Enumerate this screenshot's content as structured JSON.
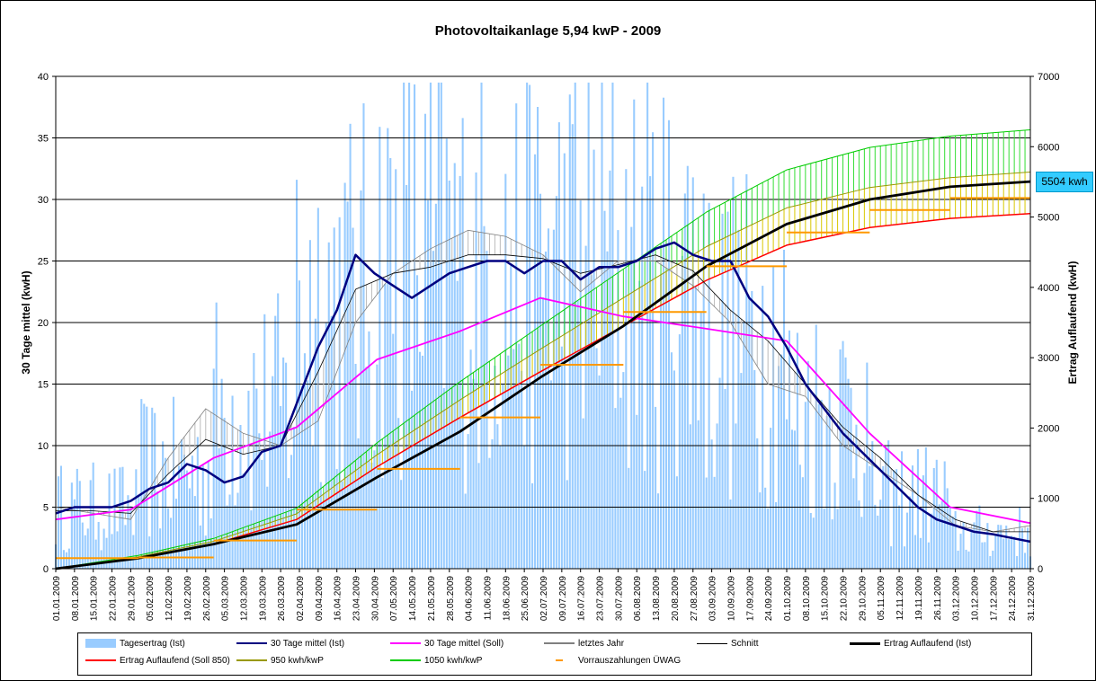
{
  "chart_data": {
    "type": "bar+line",
    "title": "Photovoltaikanlage 5,94 kwP  - 2009",
    "ylabel_left": "30 Tage mittel (kwH)",
    "ylabel_right": "Ertrag Auflaufend (kwH)",
    "ylim_left": [
      0,
      40
    ],
    "ylim_right": [
      0,
      7000
    ],
    "yticks_left": [
      "0",
      "5",
      "10",
      "15",
      "20",
      "25",
      "30",
      "35",
      "40"
    ],
    "yticks_right": [
      "0",
      "1000",
      "2000",
      "3000",
      "4000",
      "5000",
      "6000",
      "7000"
    ],
    "xlim_days": [
      0,
      364
    ],
    "grid": "horizontal",
    "legend_position": "bottom",
    "x_tick_labels": [
      "01.01.2009",
      "08.01.2009",
      "15.01.2009",
      "22.01.2009",
      "29.01.2009",
      "05.02.2009",
      "12.02.2009",
      "19.02.2009",
      "26.02.2009",
      "05.03.2009",
      "12.03.2009",
      "19.03.2009",
      "26.03.2009",
      "02.04.2009",
      "09.04.2009",
      "16.04.2009",
      "23.04.2009",
      "30.04.2009",
      "07.05.2009",
      "14.05.2009",
      "21.05.2009",
      "28.05.2009",
      "04.06.2009",
      "11.06.2009",
      "18.06.2009",
      "25.06.2009",
      "02.07.2009",
      "09.07.2009",
      "16.07.2009",
      "23.07.2009",
      "30.07.2009",
      "06.08.2009",
      "13.08.2009",
      "20.08.2009",
      "27.08.2009",
      "03.09.2009",
      "10.09.2009",
      "17.09.2009",
      "24.09.2009",
      "01.10.2009",
      "08.10.2009",
      "15.10.2009",
      "22.10.2009",
      "29.10.2009",
      "05.11.2009",
      "12.11.2009",
      "19.11.2009",
      "26.11.2009",
      "03.12.2009",
      "10.12.2009",
      "17.12.2009",
      "24.12.2009",
      "31.12.2009"
    ],
    "daily_monthly_avg_kwh": [
      5,
      8,
      13,
      22,
      25,
      24,
      25,
      24,
      19,
      13,
      6,
      3
    ],
    "series": [
      {
        "name": "30 Tage mittel (Ist)",
        "axis": "left",
        "color": "#000080",
        "x": [
          0,
          7,
          14,
          21,
          28,
          35,
          42,
          49,
          56,
          63,
          70,
          77,
          84,
          91,
          98,
          105,
          112,
          119,
          126,
          133,
          140,
          147,
          154,
          161,
          168,
          175,
          182,
          189,
          196,
          203,
          210,
          217,
          224,
          231,
          238,
          245,
          252,
          259,
          266,
          273,
          280,
          287,
          294,
          301,
          308,
          315,
          322,
          329,
          336,
          343,
          350,
          357,
          364
        ],
        "y": [
          4.5,
          5,
          5,
          5,
          5.5,
          6.5,
          7,
          8.5,
          8,
          7,
          7.5,
          9.5,
          10,
          14,
          18,
          21,
          25.5,
          24,
          23,
          22,
          23,
          24,
          24.5,
          25,
          25,
          24,
          25,
          25,
          23.5,
          24.5,
          24.5,
          25,
          26,
          26.5,
          25.5,
          25,
          25,
          22,
          20.5,
          18,
          15,
          13,
          11,
          9.5,
          8,
          6.5,
          5,
          4,
          3.5,
          3,
          2.8,
          2.5,
          2.2
        ]
      },
      {
        "name": "30 Tage mittel (Soll)",
        "axis": "left",
        "color": "#ff00ff",
        "x": [
          0,
          28,
          59,
          90,
          120,
          151,
          181,
          212,
          243,
          273,
          304,
          334,
          364
        ],
        "y": [
          4,
          4.8,
          9,
          11.5,
          17,
          19.3,
          22,
          20.5,
          19.5,
          18.5,
          11,
          5,
          3.7
        ]
      },
      {
        "name": "letztes Jahr",
        "axis": "left",
        "color": "#808080",
        "x": [
          0,
          14,
          28,
          42,
          56,
          70,
          84,
          98,
          112,
          126,
          140,
          154,
          168,
          182,
          196,
          210,
          224,
          238,
          252,
          266,
          280,
          294,
          308,
          322,
          336,
          350,
          364
        ],
        "y": [
          5,
          4.5,
          4,
          9,
          13,
          11,
          10,
          12,
          20,
          24,
          26,
          27.5,
          27,
          25.5,
          22.5,
          25,
          25,
          23,
          20,
          15,
          14,
          10,
          8,
          6,
          3.5,
          3,
          3.5
        ]
      },
      {
        "name": "Schnitt",
        "axis": "left",
        "color": "#000000",
        "x": [
          0,
          14,
          28,
          42,
          56,
          70,
          84,
          98,
          112,
          126,
          140,
          154,
          168,
          182,
          196,
          210,
          224,
          238,
          252,
          266,
          280,
          294,
          308,
          322,
          336,
          350,
          364
        ],
        "y": [
          4.7,
          4.7,
          4.5,
          7.7,
          10.5,
          9.3,
          10,
          16,
          22.7,
          24,
          24.5,
          25.5,
          25.5,
          25.2,
          24,
          24.7,
          25.5,
          24.2,
          21,
          18.5,
          15,
          11.5,
          9,
          6,
          4,
          3,
          3
        ]
      },
      {
        "name": "Ertrag Auflaufend (Ist)",
        "axis": "right",
        "color": "#000000",
        "x": [
          0,
          31,
          59,
          90,
          120,
          151,
          181,
          212,
          243,
          273,
          304,
          334,
          364
        ],
        "y": [
          0,
          150,
          350,
          630,
          1300,
          1950,
          2720,
          3450,
          4300,
          4900,
          5250,
          5430,
          5504
        ]
      },
      {
        "name": "Ertrag Auflaufend (Soll 850)",
        "axis": "right",
        "color": "#ff0000",
        "x": [
          0,
          31,
          59,
          90,
          120,
          151,
          181,
          212,
          243,
          273,
          304,
          334,
          364
        ],
        "y": [
          0,
          150,
          350,
          700,
          1450,
          2150,
          2800,
          3450,
          4100,
          4600,
          4850,
          4980,
          5050
        ]
      },
      {
        "name": "950 kwh/kwP",
        "axis": "right",
        "color": "#999900",
        "x": [
          0,
          31,
          59,
          90,
          120,
          151,
          181,
          212,
          243,
          273,
          304,
          334,
          364
        ],
        "y": [
          0,
          170,
          390,
          780,
          1620,
          2400,
          3120,
          3850,
          4580,
          5130,
          5420,
          5560,
          5640
        ]
      },
      {
        "name": "1050 kwh/kwP",
        "axis": "right",
        "color": "#00cc00",
        "x": [
          0,
          31,
          59,
          90,
          120,
          151,
          181,
          212,
          243,
          273,
          304,
          334,
          364
        ],
        "y": [
          0,
          190,
          430,
          860,
          1790,
          2660,
          3450,
          4260,
          5070,
          5670,
          5990,
          6150,
          6240
        ]
      }
    ],
    "vorrauszahlungen": [
      {
        "x0": 0,
        "x1": 31,
        "y": 150
      },
      {
        "x0": 31,
        "x1": 59,
        "y": 160
      },
      {
        "x0": 59,
        "x1": 90,
        "y": 400
      },
      {
        "x0": 90,
        "x1": 120,
        "y": 840
      },
      {
        "x0": 120,
        "x1": 151,
        "y": 1420
      },
      {
        "x0": 151,
        "x1": 181,
        "y": 2150
      },
      {
        "x0": 181,
        "x1": 212,
        "y": 2900
      },
      {
        "x0": 212,
        "x1": 243,
        "y": 3650
      },
      {
        "x0": 243,
        "x1": 273,
        "y": 4300
      },
      {
        "x0": 273,
        "x1": 304,
        "y": 4780
      },
      {
        "x0": 304,
        "x1": 334,
        "y": 5100
      },
      {
        "x0": 334,
        "x1": 364,
        "y": 5270
      }
    ],
    "callout_label": "5504 kwh",
    "legend": [
      {
        "label": "Tagesertrag (Ist)",
        "color": "#99ccff",
        "style": "bar"
      },
      {
        "label": "30 Tage mittel (Ist)",
        "color": "#000080",
        "style": "line"
      },
      {
        "label": "30 Tage mittel (Soll)",
        "color": "#ff00ff",
        "style": "line"
      },
      {
        "label": "letztes Jahr",
        "color": "#808080",
        "style": "line"
      },
      {
        "label": "Schnitt",
        "color": "#000000",
        "style": "thinline"
      },
      {
        "label": "Ertrag Auflaufend (Ist)",
        "color": "#000000",
        "style": "thickline"
      },
      {
        "label": "Ertrag Auflaufend (Soll 850)",
        "color": "#ff0000",
        "style": "line"
      },
      {
        "label": "950 kwh/kwP",
        "color": "#999900",
        "style": "line"
      },
      {
        "label": "1050 kwh/kwP",
        "color": "#00cc00",
        "style": "line"
      },
      {
        "label": "Vorrauszahlungen ÜWAG",
        "color": "#ff9900",
        "style": "marker"
      }
    ]
  }
}
